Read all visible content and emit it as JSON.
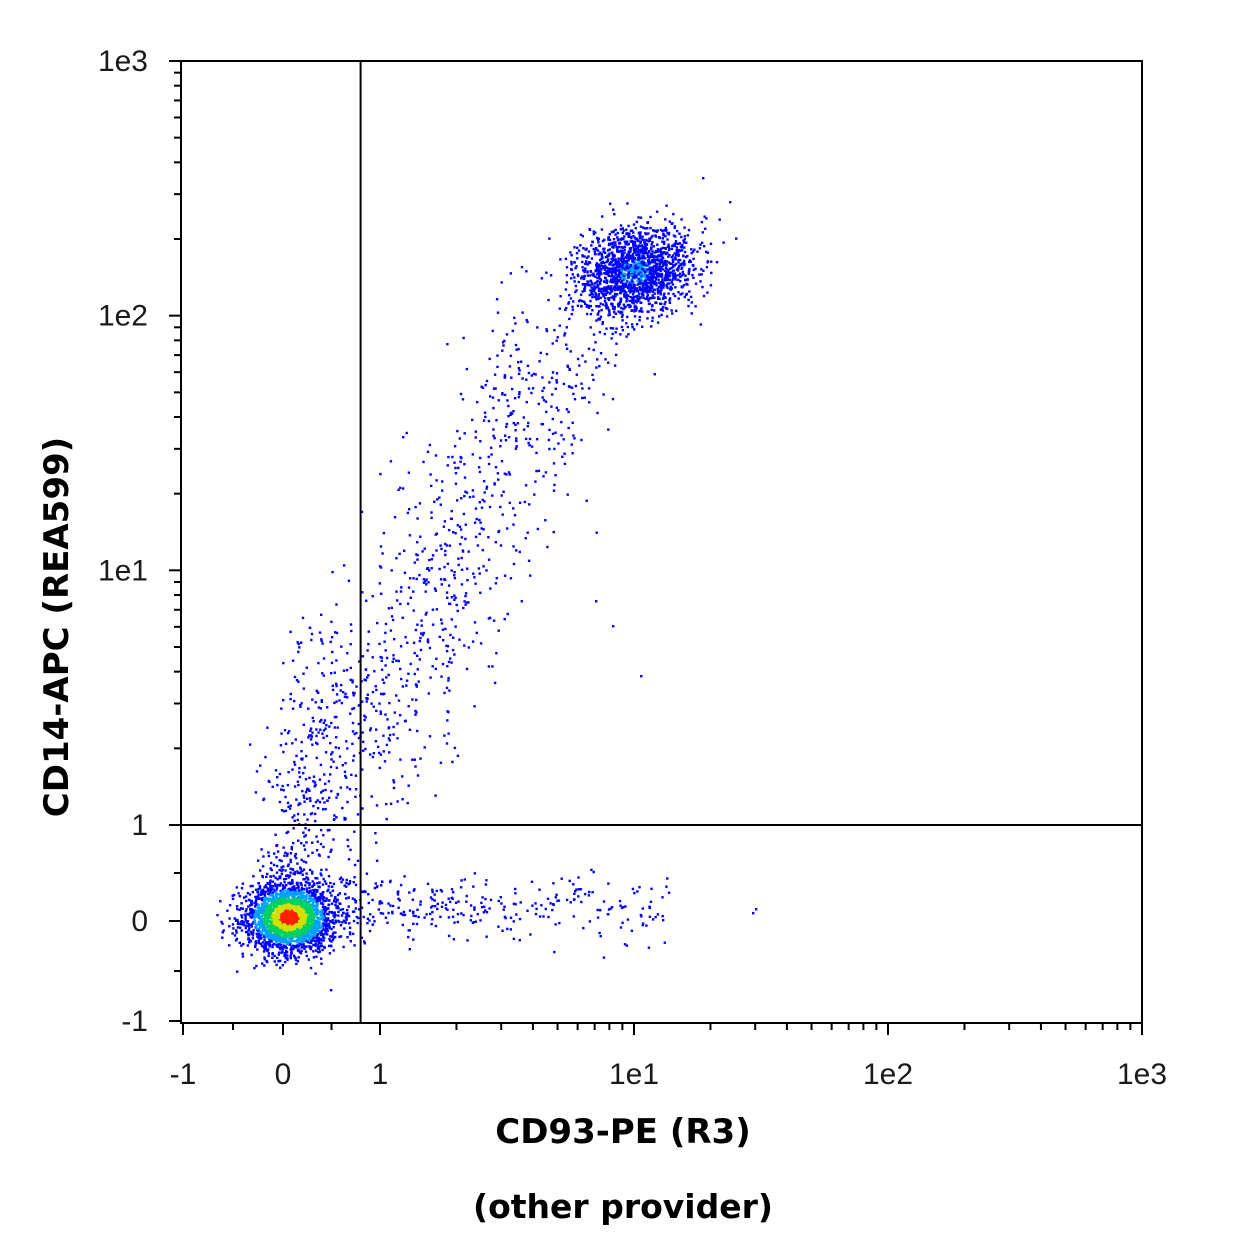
{
  "chart_data": {
    "type": "scatter",
    "style": "density-dot-plot",
    "title": "",
    "xlabel": "CD93-PE (R3)",
    "ylabel": "CD14-APC (REA599)",
    "note": "(other provider)",
    "x_scale": "biexponential (linear near 0, log above 1)",
    "y_scale": "biexponential (linear near 0, log above 1)",
    "xlim": [
      -1,
      1000
    ],
    "ylim": [
      -1,
      1000
    ],
    "x_ticks": [
      {
        "label": "-1",
        "value": -1
      },
      {
        "label": "0",
        "value": 0
      },
      {
        "label": "1",
        "value": 1
      },
      {
        "label": "1e1",
        "value": 10
      },
      {
        "label": "1e2",
        "value": 100
      },
      {
        "label": "1e3",
        "value": 1000
      }
    ],
    "y_ticks": [
      {
        "label": "1e3",
        "value": 1000
      },
      {
        "label": "1e2",
        "value": 100
      },
      {
        "label": "1e1",
        "value": 10
      },
      {
        "label": "1",
        "value": 1
      },
      {
        "label": "0",
        "value": 0
      },
      {
        "label": "-1",
        "value": -1
      }
    ],
    "quadrant_gates": {
      "x": 0.8,
      "y": 1.0
    },
    "density_colors": [
      "#0000ff",
      "#00a0ff",
      "#00d060",
      "#d0e000",
      "#ff2000"
    ],
    "clusters": [
      {
        "name": "double-negative",
        "center_x": 0.05,
        "center_y": 0.05,
        "relative_density": "highest"
      },
      {
        "name": "CD14+ CD93+",
        "center_x": 10,
        "center_y": 150,
        "relative_density": "medium"
      },
      {
        "name": "CD93+ CD14- scatter",
        "center_x": 3,
        "center_y": 0.1,
        "relative_density": "low"
      }
    ],
    "grid": false,
    "legend": "none"
  }
}
